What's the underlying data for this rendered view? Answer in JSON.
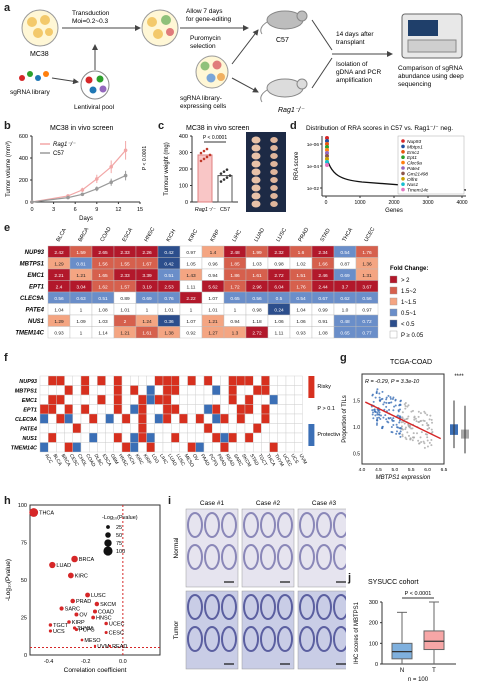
{
  "panel_labels": [
    "a",
    "b",
    "c",
    "d",
    "e",
    "f",
    "g",
    "h",
    "i",
    "j"
  ],
  "panel_a": {
    "cell_line": "MC38",
    "library": "sgRNA library",
    "pool": "Lentiviral pool",
    "step1": [
      "Transduction",
      "Moi=0.2~0.3"
    ],
    "step2": [
      "Allow 7 days",
      "for gene-editing"
    ],
    "step3": [
      "Puromycin",
      "selection"
    ],
    "step4": [
      "sgRNA library-",
      "expressing cells"
    ],
    "mouse_top": "C57",
    "mouse_bottom": "Rag1⁻/⁻",
    "step5": [
      "14 days after",
      "transplant"
    ],
    "step6": [
      "Isolation of",
      "gDNA and PCR",
      "amplification"
    ],
    "step7": [
      "Comparison of sgRNA",
      "abundance using deep",
      "sequencing"
    ]
  },
  "chart_data": [
    {
      "id": "b",
      "type": "line",
      "title": "MC38 in vivo screen",
      "xlabel": "Days",
      "ylabel": "Tumor volume (mm³)",
      "xlim": [
        0,
        15
      ],
      "ylim": [
        0,
        600
      ],
      "xticks": [
        "0",
        "3",
        "6",
        "9",
        "12",
        "15"
      ],
      "yticks": [
        "0",
        "200",
        "400",
        "600"
      ],
      "annotation": "P < 0.0001",
      "series": [
        {
          "name": "Rag1⁻/⁻",
          "color": "#f2a7a7",
          "x": [
            0,
            5,
            7,
            9,
            11,
            13
          ],
          "y": [
            0,
            55,
            110,
            210,
            320,
            470
          ]
        },
        {
          "name": "C57",
          "color": "#9a9a9a",
          "x": [
            0,
            5,
            7,
            9,
            11,
            13
          ],
          "y": [
            0,
            40,
            70,
            120,
            180,
            240
          ]
        }
      ]
    },
    {
      "id": "c",
      "type": "bar",
      "title": "MC38 in vivo screen",
      "ylabel": "Tumour weight (mg)",
      "ylim": [
        0,
        400
      ],
      "yticks": [
        "0",
        "100",
        "200",
        "300",
        "400"
      ],
      "categories": [
        "Rag1⁻/⁻",
        "C57"
      ],
      "values": [
        285,
        160
      ],
      "colors": [
        "#f9c6c6",
        "#ffffff"
      ],
      "annotation": "P < 0.0001"
    },
    {
      "id": "d",
      "type": "line",
      "title": "Distribution of RRA scores in C57 vs. Rag1⁻/⁻ neg.",
      "xlabel": "Genes",
      "ylabel": "RRA score",
      "xticks": [
        "0",
        "1000",
        "2000",
        "3000",
        "4000"
      ],
      "yticks": [
        "1e-06",
        "1e-04",
        "1e-02"
      ],
      "legend": [
        "Nup93",
        "Mbtps1",
        "Emc1",
        "Ept1",
        "Clec9a",
        "Pate4",
        "Gm21498",
        "Olfr6",
        "Nus1",
        "Tmem14c"
      ],
      "legend_colors": [
        "#d62728",
        "#1f4fa0",
        "#e6550d",
        "#2ca02c",
        "#ff7f0e",
        "#9467bd",
        "#8c564b",
        "#c7a000",
        "#17becf",
        "#e377c2"
      ]
    },
    {
      "id": "e",
      "type": "heatmap",
      "legend_title": "Fold Change:",
      "columns": [
        "BLCA",
        "BRCA",
        "COAD",
        "ESCA",
        "HNSC",
        "KICH",
        "KIRC",
        "KIRP",
        "LIHC",
        "LUAD",
        "LUSC",
        "PRAD",
        "STAD",
        "THCA",
        "UCEC"
      ],
      "rows": [
        "NUP93",
        "MBTPS1",
        "EMC1",
        "EPT1",
        "CLEC9A",
        "PATE4",
        "NUS1",
        "TMEM14C"
      ],
      "values": [
        [
          "2.42",
          "1.59",
          "2.65",
          "2.33",
          "2.26",
          "0.42",
          "0.97",
          "1.4",
          "2.48",
          "1.99",
          "2.32",
          "1.6",
          "2.34",
          "0.54",
          "1.76"
        ],
        [
          "1.29",
          "0.81",
          "1.56",
          "1.55",
          "1.67",
          "0.42",
          "1.05",
          "0.96",
          "1.85",
          "1.03",
          "0.98",
          "1.02",
          "1.66",
          "0.87",
          "1.36"
        ],
        [
          "2.21",
          "1.21",
          "1.65",
          "2.33",
          "3.39",
          "0.51",
          "1.43",
          "0.94",
          "1.86",
          "1.61",
          "2.72",
          "1.51",
          "2.46",
          "0.69",
          "1.31"
        ],
        [
          "2.4",
          "3.04",
          "1.62",
          "1.57",
          "3.19",
          "2.53",
          "1.11",
          "5.62",
          "1.72",
          "2.96",
          "6.04",
          "1.76",
          "2.44",
          "3.7",
          "3.67"
        ],
        [
          "0.56",
          "0.63",
          "0.51",
          "0.89",
          "0.69",
          "0.76",
          "2.22",
          "1.07",
          "0.65",
          "0.56",
          "0.5",
          "0.54",
          "0.67",
          "0.62",
          "0.56"
        ],
        [
          "1.04",
          "1",
          "1.08",
          "1.01",
          "1",
          "1.01",
          "1",
          "1.01",
          "1",
          "0.98",
          "0.24",
          "1.04",
          "0.99",
          "1.0",
          "0.97"
        ],
        [
          "1.29",
          "1.09",
          "1.03",
          "2",
          "1.24",
          "0.36",
          "1.07",
          "1.21",
          "0.94",
          "1.18",
          "1.06",
          "1.06",
          "0.91",
          "0.48",
          "0.72"
        ],
        [
          "0.93",
          "1",
          "1.14",
          "1.21",
          "1.61",
          "1.38",
          "0.92",
          "1.27",
          "1.3",
          "2.72",
          "1.11",
          "0.93",
          "1.08",
          "0.65",
          "0.77"
        ]
      ],
      "legend": [
        "> 2",
        "1.5~2",
        "1~1.5",
        "0.5~1",
        "< 0.5",
        "P ≥ 0.05"
      ],
      "legend_colors": [
        "#b2182b",
        "#d6604d",
        "#f4a582",
        "#6a8ec9",
        "#2c4e8c",
        "#ffffff"
      ]
    },
    {
      "id": "f",
      "type": "heatmap",
      "rows": [
        "NUP93",
        "MBTPS1",
        "EMC1",
        "EPT1",
        "CLEC9A",
        "PATE4",
        "NUS1",
        "TMEM14C"
      ],
      "columns": [
        "ACC",
        "BLCA",
        "BRCA",
        "CESC",
        "CHOL",
        "COAD",
        "DLBC",
        "ESCA",
        "GBM",
        "HNSC",
        "KICH",
        "KIRC",
        "KIRP",
        "LGG",
        "LIHC",
        "LUAD",
        "LUSC",
        "MESO",
        "OV",
        "PAAD",
        "PCPG",
        "PRAD",
        "READ",
        "SARC",
        "SKCM",
        "STAD",
        "TGCT",
        "THCA",
        "THYM",
        "UCEC",
        "UCS",
        "UVM"
      ],
      "legend": [
        "Risky",
        "P > 0.1",
        "Protective"
      ],
      "legend_colors": [
        "#d7301f",
        "#ffffff",
        "#3b6fb6"
      ]
    },
    {
      "id": "g",
      "type": "scatter",
      "title": "TCGA-COAD",
      "xlabel": "MBTPS1 expression",
      "ylabel": "Proportion of TILs",
      "xlim": [
        4.0,
        6.5
      ],
      "ylim": [
        0.3,
        2.0
      ],
      "xticks": [
        "4.0",
        "4.5",
        "5.0",
        "5.5",
        "6.0",
        "6.5"
      ],
      "yticks": [
        "0.5",
        "1.0",
        "1.5"
      ],
      "annotation": "R = -0.29, P = 3.3e-10",
      "box_annotation": "****"
    },
    {
      "id": "h",
      "type": "scatter",
      "xlabel": "Correlation coefficient",
      "ylabel": "-Log₁₀(Pvalue)",
      "xlim": [
        -0.5,
        0.2
      ],
      "ylim": [
        0,
        100
      ],
      "xticks": [
        "-0.4",
        "-0.2",
        "0.0"
      ],
      "yticks": [
        "0",
        "25",
        "50",
        "75",
        "100"
      ],
      "legend_title": "-Log₁₀(Pvalue)",
      "legend": [
        "25",
        "50",
        "75",
        "100"
      ],
      "points": [
        {
          "label": "THCA",
          "x": -0.48,
          "y": 95
        },
        {
          "label": "BRCA",
          "x": -0.26,
          "y": 64
        },
        {
          "label": "LUAD",
          "x": -0.38,
          "y": 60
        },
        {
          "label": "KIRC",
          "x": -0.28,
          "y": 53
        },
        {
          "label": "LUSC",
          "x": -0.19,
          "y": 40
        },
        {
          "label": "PRAD",
          "x": -0.27,
          "y": 36
        },
        {
          "label": "SKCM",
          "x": -0.14,
          "y": 34
        },
        {
          "label": "SARC",
          "x": -0.33,
          "y": 31
        },
        {
          "label": "COAD",
          "x": -0.15,
          "y": 29
        },
        {
          "label": "OV",
          "x": -0.25,
          "y": 27
        },
        {
          "label": "HNSC",
          "x": -0.16,
          "y": 25
        },
        {
          "label": "KIRP",
          "x": -0.29,
          "y": 22
        },
        {
          "label": "UCEC",
          "x": -0.09,
          "y": 21
        },
        {
          "label": "TGCT",
          "x": -0.39,
          "y": 20
        },
        {
          "label": "THYM",
          "x": -0.26,
          "y": 18
        },
        {
          "label": "PCPG",
          "x": -0.25,
          "y": 17
        },
        {
          "label": "UCS",
          "x": -0.39,
          "y": 16
        },
        {
          "label": "CESC",
          "x": -0.09,
          "y": 15
        },
        {
          "label": "MESO",
          "x": -0.22,
          "y": 10
        },
        {
          "label": "UVM",
          "x": -0.15,
          "y": 6
        },
        {
          "label": "READ",
          "x": -0.07,
          "y": 6
        }
      ]
    },
    {
      "id": "j",
      "type": "box",
      "title": "SYSUCC cohort",
      "ylabel": "IHC scores of MBTPS1",
      "ylim": [
        0,
        300
      ],
      "yticks": [
        "0",
        "100",
        "200",
        "300"
      ],
      "categories": [
        "N",
        "T"
      ],
      "colors": [
        "#7fb0de",
        "#f7a6a6"
      ],
      "box_stats": [
        {
          "min": 0,
          "q1": 25,
          "median": 60,
          "q3": 100,
          "max": 250
        },
        {
          "min": 0,
          "q1": 70,
          "median": 110,
          "q3": 160,
          "max": 300
        }
      ],
      "annotation": "P < 0.0001",
      "footer": "n = 100"
    }
  ],
  "panel_i": {
    "cases": [
      "Case #1",
      "Case #2",
      "Case #3"
    ],
    "rows": [
      "Normal",
      "Tumor"
    ]
  }
}
